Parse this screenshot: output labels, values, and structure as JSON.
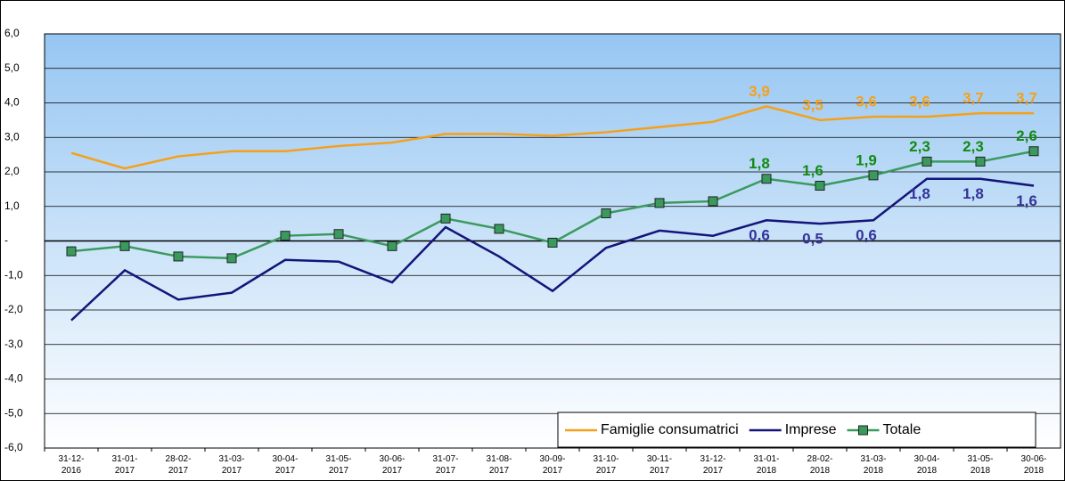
{
  "chart_data": {
    "type": "line",
    "categories": [
      "31-12-2016",
      "31-01-2017",
      "28-02-2017",
      "31-03-2017",
      "30-04-2017",
      "31-05-2017",
      "30-06-2017",
      "31-07-2017",
      "31-08-2017",
      "30-09-2017",
      "31-10-2017",
      "30-11-2017",
      "31-12-2017",
      "31-01-2018",
      "28-02-2018",
      "31-03-2018",
      "30-04-2018",
      "31-05-2018",
      "30-06-2018"
    ],
    "series": [
      {
        "name": "Famiglie consumatrici",
        "color": "#f5a01a",
        "label_color": "#f5a01a",
        "label_side": "above",
        "marker": false,
        "values": [
          2.55,
          2.1,
          2.45,
          2.6,
          2.6,
          2.75,
          2.85,
          3.1,
          3.1,
          3.05,
          3.15,
          3.3,
          3.45,
          3.9,
          3.5,
          3.6,
          3.6,
          3.7,
          3.7
        ],
        "value_labels": [
          null,
          null,
          null,
          null,
          null,
          null,
          null,
          null,
          null,
          null,
          null,
          null,
          null,
          "3,9",
          "3,5",
          "3,6",
          "3,6",
          "3,7",
          "3,7"
        ]
      },
      {
        "name": "Imprese",
        "color": "#14147a",
        "label_color": "#33339a",
        "label_side": "below",
        "marker": false,
        "values": [
          -2.3,
          -0.85,
          -1.7,
          -1.5,
          -0.55,
          -0.6,
          -1.2,
          0.4,
          -0.45,
          -1.45,
          -0.2,
          0.3,
          0.15,
          0.6,
          0.5,
          0.6,
          1.8,
          1.8,
          1.6
        ],
        "value_labels": [
          null,
          null,
          null,
          null,
          null,
          null,
          null,
          null,
          null,
          null,
          null,
          null,
          null,
          "0,6",
          "0,5",
          "0,6",
          "1,8",
          "1,8",
          "1,6"
        ]
      },
      {
        "name": "Totale",
        "color": "#3a9a5e",
        "label_color": "#128a12",
        "label_side": "above",
        "marker": true,
        "values": [
          -0.3,
          -0.15,
          -0.45,
          -0.5,
          0.15,
          0.2,
          -0.15,
          0.65,
          0.35,
          -0.05,
          0.8,
          1.1,
          1.15,
          1.8,
          1.6,
          1.9,
          2.3,
          2.3,
          2.6
        ],
        "value_labels": [
          null,
          null,
          null,
          null,
          null,
          null,
          null,
          null,
          null,
          null,
          null,
          null,
          null,
          "1,8",
          "1,6",
          "1,9",
          "2,3",
          "2,3",
          "2,6"
        ]
      }
    ],
    "ylim": [
      -6,
      6
    ],
    "yticks": [
      {
        "value": -6,
        "label": "-6,0"
      },
      {
        "value": -5,
        "label": "-5,0"
      },
      {
        "value": -4,
        "label": "-4,0"
      },
      {
        "value": -3,
        "label": "-3,0"
      },
      {
        "value": -2,
        "label": "-2,0"
      },
      {
        "value": -1,
        "label": "-1,0"
      },
      {
        "value": 0,
        "label": "-"
      },
      {
        "value": 1,
        "label": "1,0"
      },
      {
        "value": 2,
        "label": "2,0"
      },
      {
        "value": 3,
        "label": "3,0"
      },
      {
        "value": 4,
        "label": "4,0"
      },
      {
        "value": 5,
        "label": "5,0"
      },
      {
        "value": 6,
        "label": "6,0"
      }
    ],
    "grid": true,
    "legend": "lower right"
  }
}
